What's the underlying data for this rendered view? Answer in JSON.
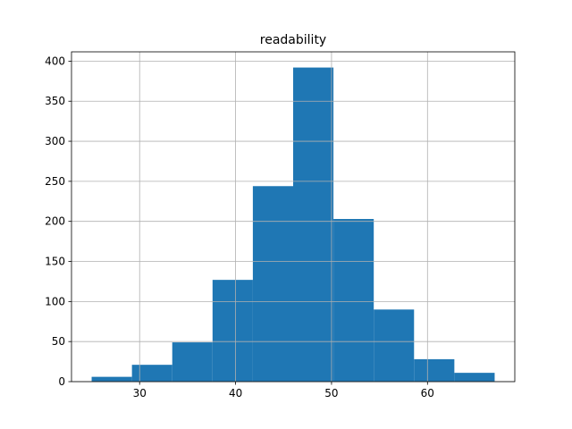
{
  "chart_data": {
    "type": "histogram",
    "title": "readability",
    "bins": [
      25,
      29.2,
      33.4,
      37.6,
      41.8,
      46,
      50.2,
      54.4,
      58.6,
      62.8,
      67
    ],
    "values": [
      6,
      21,
      49,
      127,
      244,
      392,
      203,
      90,
      28,
      11
    ],
    "color": "#1f77b4",
    "xlim": [
      22.9,
      69.1
    ],
    "xticks": [
      30,
      40,
      50,
      60
    ],
    "ylim": [
      0,
      411.6
    ],
    "yticks": [
      0,
      50,
      100,
      150,
      200,
      250,
      300,
      350,
      400
    ],
    "grid": true
  }
}
